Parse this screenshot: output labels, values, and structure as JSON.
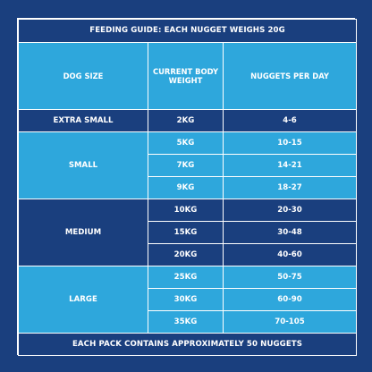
{
  "title": "FEEDING GUIDE: EACH NUGGET WEIGHS 20g",
  "headers": {
    "size": "DOG SIZE",
    "weight": "CURRENT BODY WEIGHT",
    "nuggets": "NUGGETS PER DAY"
  },
  "groups": {
    "extra_small": "EXTRA SMALL",
    "small": "SMALL",
    "medium": "MEDIUM",
    "large": "LARGE"
  },
  "rows": [
    {
      "weight": "2kg",
      "nuggets": "4-6"
    },
    {
      "weight": "5kg",
      "nuggets": "10-15"
    },
    {
      "weight": "7kg",
      "nuggets": "14-21"
    },
    {
      "weight": "9kg",
      "nuggets": "18-27"
    },
    {
      "weight": "10kg",
      "nuggets": "20-30"
    },
    {
      "weight": "15kg",
      "nuggets": "30-48"
    },
    {
      "weight": "20kg",
      "nuggets": "40-60"
    },
    {
      "weight": "25kg",
      "nuggets": "50-75"
    },
    {
      "weight": "30kg",
      "nuggets": "60-90"
    },
    {
      "weight": "35kg",
      "nuggets": "70-105"
    }
  ],
  "footer": "EACH PACK CONTAINS APPROXIMATELY 50 NUGGETS",
  "colors": {
    "dark_blue": "#1a3f7e",
    "light_blue": "#2ea7dc",
    "border": "#ffffff"
  }
}
